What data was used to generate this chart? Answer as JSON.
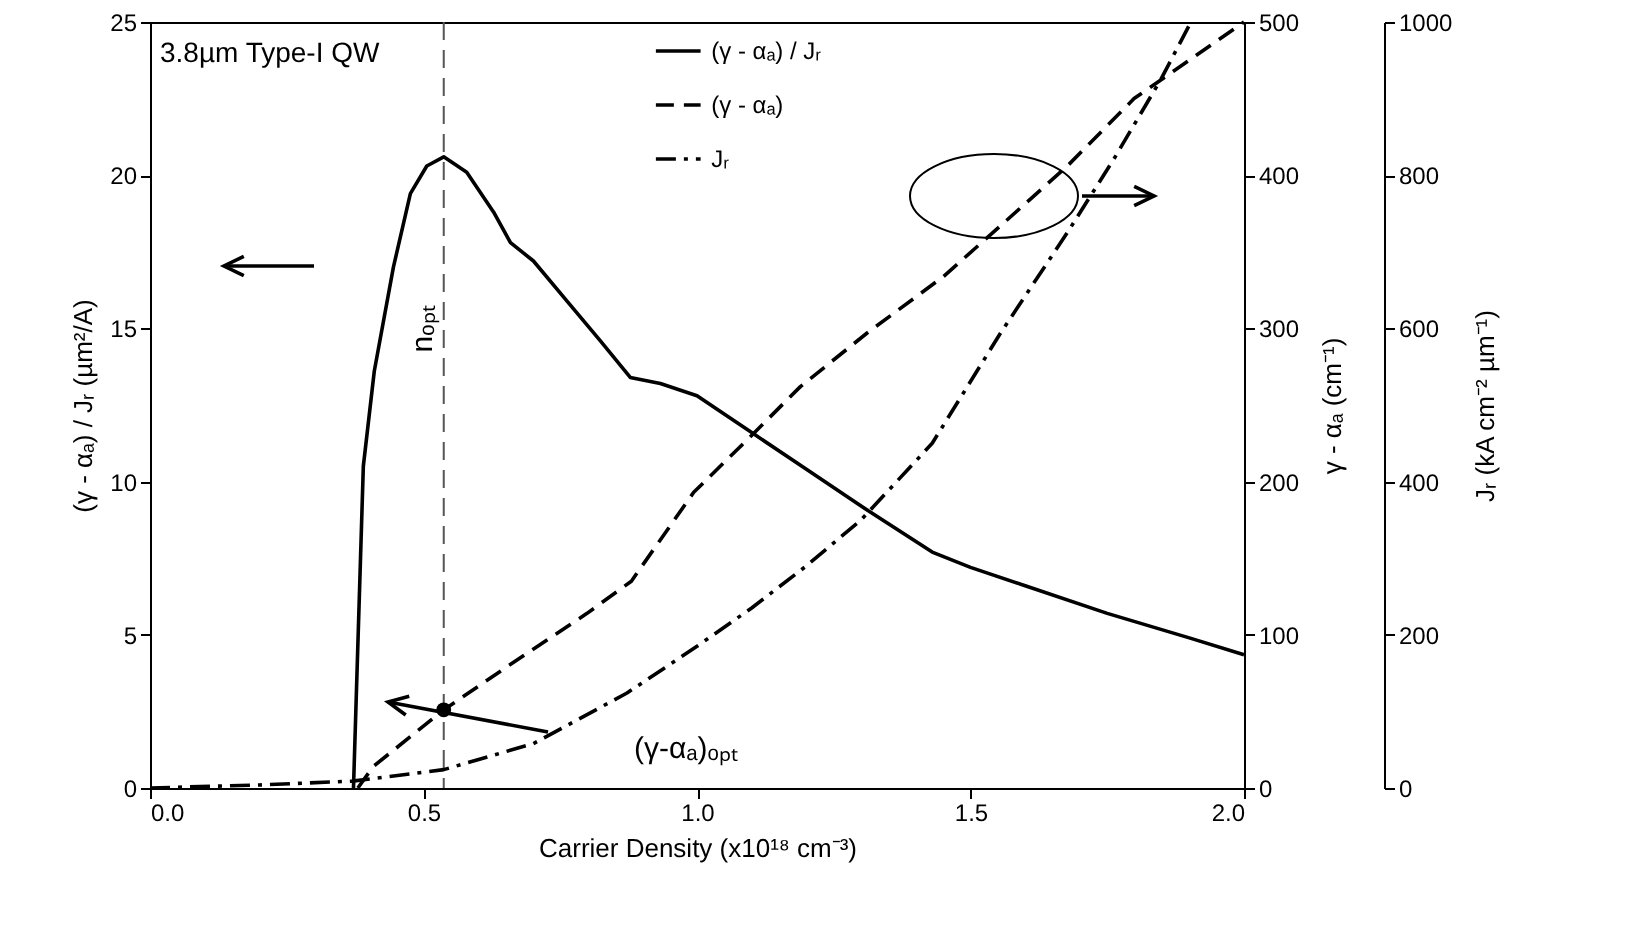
{
  "chart_data": {
    "type": "line",
    "xlabel": "Carrier Density (x10¹⁸ cm⁻³)",
    "ylabel": "(γ - αₐ) / Jᵣ (µm²/A)",
    "y2label": "γ - αₐ (cm⁻¹)",
    "y3label": "Jᵣ (kA cm⁻² µm⁻¹)",
    "xlim": [
      0,
      2
    ],
    "xticks": [
      {
        "value": 0,
        "label": "0.0"
      },
      {
        "value": 0.5,
        "label": "0.5"
      },
      {
        "value": 1,
        "label": "1.0"
      },
      {
        "value": 1.5,
        "label": "1.5"
      },
      {
        "value": 2,
        "label": "2.0"
      }
    ],
    "ylim": [
      0,
      25
    ],
    "yticks": [
      0,
      5,
      10,
      15,
      20,
      25
    ],
    "y2lim": [
      0,
      500
    ],
    "y2ticks": [
      0,
      100,
      200,
      300,
      400,
      500
    ],
    "y3lim": [
      0,
      1000
    ],
    "y3ticks": [
      0,
      200,
      400,
      600,
      800,
      1000
    ],
    "legend": "top right",
    "series": [
      {
        "name": "(γ - αₐ) / Jᵣ",
        "color": "#000000",
        "line_style": "solid",
        "x": [
          0.372,
          0.39,
          0.41,
          0.445,
          0.476,
          0.506,
          0.537,
          0.579,
          0.628,
          0.659,
          0.701,
          0.762,
          0.823,
          0.878,
          0.933,
          1.0,
          1.1,
          1.2,
          1.3,
          1.43,
          1.5,
          1.6,
          1.75,
          1.9,
          2.0
        ],
        "values": [
          0,
          10.5,
          13.6,
          17.0,
          19.4,
          20.3,
          20.6,
          20.1,
          18.8,
          17.8,
          17.2,
          15.9,
          14.6,
          13.4,
          13.2,
          12.8,
          11.6,
          10.4,
          9.2,
          7.7,
          7.2,
          6.6,
          5.7,
          4.9,
          4.35
        ]
      },
      {
        "name": "(γ - αₐ)",
        "color": "#000000",
        "line_style": "dashed",
        "axis": "y2",
        "x": [
          0.38,
          0.408,
          0.537,
          0.652,
          0.799,
          0.88,
          0.994,
          1.091,
          1.189,
          1.311,
          1.451,
          1.555,
          1.677,
          1.799,
          2.0
        ],
        "values": [
          0,
          14,
          51,
          79,
          114,
          135,
          193,
          227,
          262,
          297,
          334,
          367,
          406,
          450,
          500
        ]
      },
      {
        "name": "Jᵣ",
        "color": "#000000",
        "line_style": "dashdot",
        "axis": "y3",
        "x": [
          0,
          0.2,
          0.37,
          0.537,
          0.701,
          0.872,
          1.0,
          1.1,
          1.2,
          1.3,
          1.43,
          1.555,
          1.677,
          1.762,
          1.848,
          1.903
        ],
        "values": [
          0,
          4,
          9,
          24,
          58,
          124,
          185,
          235,
          290,
          350,
          450,
          594,
          725,
          821,
          925,
          1000
        ]
      },
      {
        "type": "scatter",
        "color": "#000000",
        "axis": "y2",
        "x": [
          0.537
        ],
        "values": [
          51
        ]
      }
    ],
    "ref_lines": [
      {
        "axis": "x",
        "value": 0.537,
        "label": "nₒₚₜ",
        "color": "#555555",
        "line_style": "dashed"
      }
    ],
    "annotations": [
      "3.8µm Type-I QW",
      "(γ-αₐ)ₒₚₜ"
    ]
  }
}
